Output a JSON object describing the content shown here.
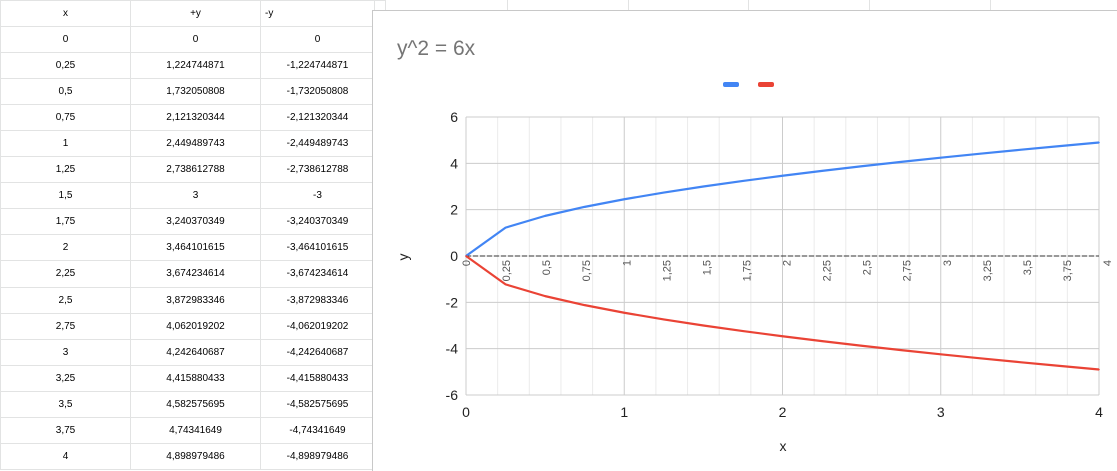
{
  "sheet": {
    "headers": [
      "x",
      "+y",
      "-y"
    ],
    "rows": [
      [
        "0",
        "0",
        "0"
      ],
      [
        "0,25",
        "1,224744871",
        "-1,224744871"
      ],
      [
        "0,5",
        "1,732050808",
        "-1,732050808"
      ],
      [
        "0,75",
        "2,121320344",
        "-2,121320344"
      ],
      [
        "1",
        "2,449489743",
        "-2,449489743"
      ],
      [
        "1,25",
        "2,738612788",
        "-2,738612788"
      ],
      [
        "1,5",
        "3",
        "-3"
      ],
      [
        "1,75",
        "3,240370349",
        "-3,240370349"
      ],
      [
        "2",
        "3,464101615",
        "-3,464101615"
      ],
      [
        "2,25",
        "3,674234614",
        "-3,674234614"
      ],
      [
        "2,5",
        "3,872983346",
        "-3,872983346"
      ],
      [
        "2,75",
        "4,062019202",
        "-4,062019202"
      ],
      [
        "3",
        "4,242640687",
        "-4,242640687"
      ],
      [
        "3,25",
        "4,415880433",
        "-4,415880433"
      ],
      [
        "3,5",
        "4,582575695",
        "-4,582575695"
      ],
      [
        "3,75",
        "4,74341649",
        "-4,74341649"
      ],
      [
        "4",
        "4,898979486",
        "-4,898979486"
      ]
    ]
  },
  "chart_data": {
    "type": "line",
    "title": "y^2 = 6x",
    "xlabel": "x",
    "ylabel": "y",
    "xlim": [
      0,
      4
    ],
    "ylim": [
      -6,
      6
    ],
    "x_ticks": [
      "0",
      "1",
      "2",
      "3",
      "4"
    ],
    "y_ticks": [
      "6",
      "4",
      "2",
      "0",
      "-2",
      "-4",
      "-6"
    ],
    "category_labels": [
      "0",
      "0,25",
      "0,5",
      "0,75",
      "1",
      "1,25",
      "1,5",
      "1,75",
      "2",
      "2,25",
      "2,5",
      "2,75",
      "3",
      "3,25",
      "3,5",
      "3,75",
      "4"
    ],
    "x": [
      0,
      0.25,
      0.5,
      0.75,
      1,
      1.25,
      1.5,
      1.75,
      2,
      2.25,
      2.5,
      2.75,
      3,
      3.25,
      3.5,
      3.75,
      4
    ],
    "series": [
      {
        "color": "#4285f4",
        "values": [
          0,
          1.224744871,
          1.732050808,
          2.121320344,
          2.449489743,
          2.738612788,
          3,
          3.240370349,
          3.464101615,
          3.674234614,
          3.872983346,
          4.062019202,
          4.242640687,
          4.415880433,
          4.582575695,
          4.74341649,
          4.898979486
        ]
      },
      {
        "color": "#ea4335",
        "values": [
          0,
          -1.224744871,
          -1.732050808,
          -2.121320344,
          -2.449489743,
          -2.738612788,
          -3,
          -3.240370349,
          -3.464101615,
          -3.674234614,
          -3.872983346,
          -4.062019202,
          -4.242640687,
          -4.415880433,
          -4.582575695,
          -4.74341649,
          -4.898979486
        ]
      }
    ],
    "grid": true,
    "legend_position": "top"
  }
}
